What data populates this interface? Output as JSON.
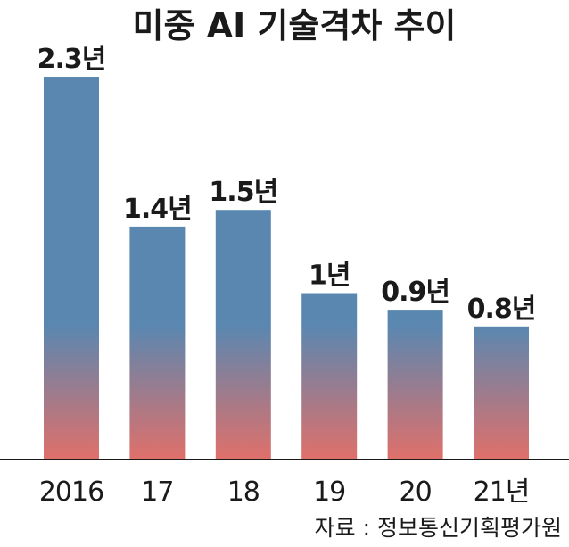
{
  "chart_data": {
    "type": "bar",
    "title": "미중 AI 기술격차 추이",
    "categories": [
      "2016",
      "17",
      "18",
      "19",
      "20",
      "21년"
    ],
    "values": [
      2.3,
      1.4,
      1.5,
      1.0,
      0.9,
      0.8
    ],
    "value_labels": [
      "2.3년",
      "1.4년",
      "1.5년",
      "1년",
      "0.9년",
      "0.8년"
    ],
    "xlabel": "",
    "ylabel": "",
    "ylim": [
      0,
      2.3
    ],
    "grid": false,
    "source": "자료 : 정보통신기획평가원",
    "colors": {
      "bar_top": "#5a87b0",
      "bar_mid": "#5a87b0",
      "bar_bottom": "#e0706a",
      "text": "#1a1a1a",
      "axis": "#1a1a1a"
    }
  }
}
